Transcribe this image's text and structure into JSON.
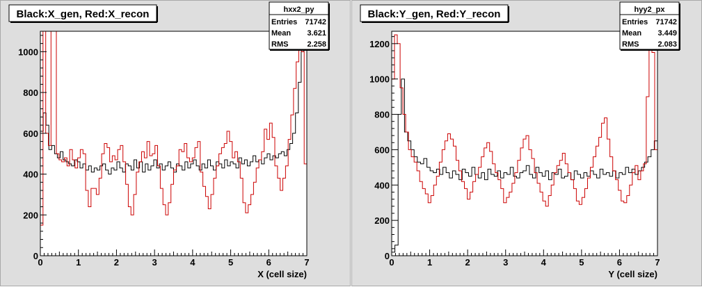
{
  "colors": {
    "gen": "#000000",
    "recon": "#cc0000",
    "pad_bg": "#dedede",
    "frame_bg": "#ffffff"
  },
  "chart_data": [
    {
      "type": "histogram",
      "title": "Black:X_gen, Red:X_recon",
      "xlabel": "X (cell size)",
      "ylabel": "",
      "xlim": [
        0,
        7
      ],
      "ylim": [
        0,
        1100
      ],
      "xticks": [
        "0",
        "1",
        "2",
        "3",
        "4",
        "5",
        "6",
        "7"
      ],
      "yticks": [
        "0",
        "200",
        "400",
        "600",
        "800",
        "1000"
      ],
      "stats": {
        "name": "hxx2_py",
        "entries_label": "Entries",
        "entries": "71742",
        "mean_label": "Mean",
        "mean": "3.621",
        "rms_label": "RMS",
        "rms": "2.258"
      },
      "series": [
        {
          "name": "X_gen",
          "color": "#000000",
          "values": [
            610,
            700,
            640,
            520,
            540,
            500,
            480,
            510,
            470,
            460,
            450,
            440,
            470,
            460,
            430,
            450,
            420,
            440,
            410,
            430,
            420,
            440,
            450,
            420,
            400,
            430,
            420,
            460,
            430,
            410,
            450,
            440,
            420,
            470,
            430,
            460,
            410,
            450,
            420,
            440,
            470,
            430,
            450,
            420,
            440,
            460,
            430,
            410,
            450,
            440,
            420,
            460,
            430,
            450,
            470,
            440,
            420,
            450,
            430,
            470,
            440,
            420,
            460,
            450,
            430,
            470,
            440,
            460,
            450,
            430,
            480,
            450,
            470,
            440,
            460,
            490,
            460,
            470,
            450,
            480,
            500,
            470,
            490,
            480,
            500,
            510,
            490,
            520,
            550,
            600,
            700,
            850,
            1000,
            1100
          ]
        },
        {
          "name": "X_recon",
          "color": "#cc0000",
          "values": [
            150,
            1100,
            600,
            540,
            1100,
            1100,
            500,
            470,
            460,
            480,
            440,
            520,
            470,
            430,
            480,
            520,
            500,
            320,
            240,
            330,
            330,
            300,
            380,
            500,
            550,
            530,
            460,
            490,
            470,
            520,
            540,
            460,
            350,
            240,
            200,
            300,
            410,
            460,
            510,
            480,
            560,
            490,
            500,
            540,
            440,
            330,
            250,
            200,
            260,
            350,
            420,
            440,
            520,
            510,
            550,
            480,
            460,
            480,
            530,
            560,
            410,
            340,
            290,
            230,
            300,
            380,
            440,
            500,
            530,
            550,
            610,
            560,
            480,
            510,
            460,
            380,
            260,
            210,
            250,
            300,
            360,
            430,
            470,
            510,
            620,
            570,
            650,
            580,
            440,
            380,
            320,
            380,
            440,
            570,
            690,
            820,
            950,
            1100,
            1000,
            450
          ]
        }
      ]
    },
    {
      "type": "histogram",
      "title": "Black:Y_gen, Red:Y_recon",
      "xlabel": "Y (cell size)",
      "ylabel": "",
      "xlim": [
        0,
        7
      ],
      "ylim": [
        0,
        1270
      ],
      "xticks": [
        "0",
        "1",
        "2",
        "3",
        "4",
        "5",
        "6",
        "7"
      ],
      "yticks": [
        "0",
        "200",
        "400",
        "600",
        "800",
        "1000",
        "1200"
      ],
      "stats": {
        "name": "hyy2_px",
        "entries_label": "Entries",
        "entries": "71742",
        "mean_label": "Mean",
        "mean": "3.449",
        "rms_label": "RMS",
        "rms": "2.083"
      },
      "series": [
        {
          "name": "Y_gen",
          "color": "#000000",
          "values": [
            20,
            60,
            800,
            1000,
            700,
            650,
            600,
            560,
            530,
            520,
            550,
            500,
            480,
            470,
            490,
            460,
            500,
            470,
            440,
            480,
            460,
            430,
            490,
            470,
            450,
            500,
            460,
            440,
            470,
            430,
            490,
            460,
            450,
            480,
            440,
            470,
            460,
            500,
            450,
            440,
            470,
            480,
            510,
            460,
            440,
            500,
            470,
            450,
            480,
            430,
            470,
            460,
            490,
            440,
            450,
            470,
            430,
            480,
            460,
            440,
            470,
            450,
            480,
            460,
            440,
            490,
            460,
            470,
            450,
            480,
            440,
            470,
            460,
            500,
            470,
            490,
            460,
            480,
            500,
            530,
            560,
            600,
            650
          ]
        },
        {
          "name": "Y_recon",
          "color": "#cc0000",
          "values": [
            1000,
            1250,
            1200,
            950,
            800,
            700,
            600,
            560,
            530,
            480,
            420,
            380,
            350,
            300,
            340,
            400,
            450,
            530,
            600,
            650,
            690,
            660,
            620,
            540,
            480,
            420,
            380,
            320,
            360,
            420,
            460,
            500,
            560,
            610,
            640,
            590,
            520,
            470,
            430,
            380,
            300,
            330,
            360,
            410,
            470,
            540,
            610,
            660,
            680,
            600,
            550,
            470,
            410,
            360,
            310,
            280,
            340,
            400,
            470,
            510,
            540,
            580,
            520,
            470,
            430,
            380,
            310,
            290,
            330,
            380,
            440,
            500,
            560,
            620,
            670,
            750,
            780,
            660,
            560,
            480,
            430,
            370,
            310,
            300,
            340,
            400,
            470,
            510,
            430,
            480,
            520,
            900,
            1250,
            1150,
            600
          ]
        }
      ]
    }
  ]
}
